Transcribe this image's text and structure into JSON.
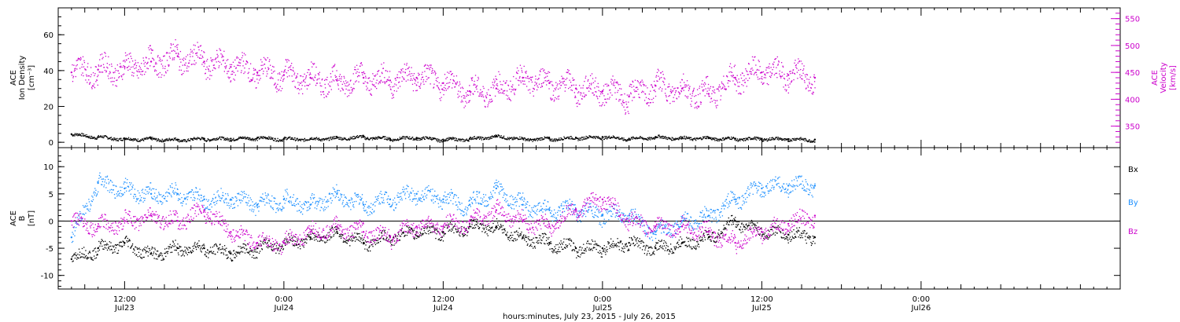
{
  "colors": {
    "ink": "#000000",
    "velocity": "#cc00cc",
    "bx": "#000000",
    "by": "#1e90ff",
    "bz": "#cc00cc"
  },
  "footer": {
    "xlabel": "hours:minutes, July 23, 2015 - July 26, 2015"
  },
  "chart_data": [
    {
      "type": "scatter",
      "panel": "top",
      "ylabel_left": [
        "ACE",
        "Ion Density",
        "[cm⁻³]"
      ],
      "ylabel_right": [
        "ACE",
        "Velocity",
        "[km/s]"
      ],
      "ylim_left": [
        -3,
        75
      ],
      "yticks_left": [
        "0",
        "20",
        "40",
        "60"
      ],
      "ylim_right": [
        310,
        570
      ],
      "yticks_right": [
        "350",
        "400",
        "450",
        "500",
        "550"
      ],
      "series": [
        {
          "axis": "left",
          "color": "#000000",
          "x": [
            8,
            10,
            12,
            14,
            16,
            18,
            20,
            22,
            24,
            26,
            28,
            30,
            32,
            34,
            36,
            38,
            40,
            42,
            44,
            46,
            48,
            50,
            52,
            54,
            56,
            58,
            60,
            62,
            64
          ],
          "y": [
            4.5,
            3,
            2,
            2,
            1.5,
            2,
            2,
            2.5,
            2,
            2,
            2.5,
            3,
            2,
            2.5,
            1.5,
            2,
            3.5,
            2,
            2,
            2.5,
            3,
            2,
            3,
            2.5,
            2.5,
            2,
            2,
            1.8,
            1.5
          ]
        },
        {
          "axis": "right",
          "color": "#cc00cc",
          "x": [
            8,
            10,
            12,
            14,
            16,
            18,
            20,
            22,
            24,
            26,
            28,
            30,
            32,
            34,
            36,
            38,
            40,
            42,
            44,
            46,
            48,
            50,
            52,
            54,
            56,
            58,
            60,
            62,
            64
          ],
          "y": [
            450,
            455,
            460,
            470,
            480,
            470,
            460,
            450,
            445,
            440,
            435,
            440,
            435,
            440,
            430,
            415,
            420,
            440,
            430,
            420,
            415,
            405,
            425,
            420,
            410,
            440,
            450,
            445,
            440
          ]
        }
      ]
    },
    {
      "type": "scatter",
      "panel": "bottom",
      "ylabel_left": [
        "ACE",
        "B",
        "[nT]"
      ],
      "ylim": [
        -12.5,
        13.5
      ],
      "yticks": [
        "-10",
        "-5",
        "0",
        "5",
        "10"
      ],
      "legend": [
        "Bx",
        "By",
        "Bz"
      ],
      "series": [
        {
          "name": "Bx",
          "color": "#000000",
          "x": [
            8,
            10,
            12,
            14,
            16,
            18,
            20,
            22,
            24,
            26,
            28,
            30,
            32,
            34,
            36,
            38,
            40,
            42,
            44,
            46,
            48,
            50,
            52,
            54,
            56,
            58,
            60,
            62,
            64
          ],
          "y": [
            -7,
            -5,
            -4,
            -6,
            -5,
            -5,
            -6,
            -5,
            -4,
            -3,
            -2,
            -4,
            -3,
            -2,
            -2,
            -1,
            -1,
            -3,
            -4,
            -5,
            -5,
            -4,
            -5,
            -4,
            -3,
            0,
            -2,
            -2.5,
            -3
          ]
        },
        {
          "name": "By",
          "color": "#1e90ff",
          "x": [
            8,
            10,
            12,
            14,
            16,
            18,
            20,
            22,
            24,
            26,
            28,
            30,
            32,
            34,
            36,
            38,
            40,
            42,
            44,
            46,
            48,
            50,
            52,
            54,
            56,
            58,
            60,
            62,
            64
          ],
          "y": [
            -3,
            7,
            6,
            5,
            5,
            4,
            4,
            3,
            4,
            3,
            5,
            3,
            4,
            5,
            4,
            3,
            6,
            3,
            2,
            2,
            1,
            1,
            -2,
            0,
            1,
            4,
            6,
            6.5,
            6.5
          ]
        },
        {
          "name": "Bz",
          "color": "#cc00cc",
          "x": [
            8,
            10,
            12,
            14,
            16,
            18,
            20,
            22,
            24,
            26,
            28,
            30,
            32,
            34,
            36,
            38,
            40,
            42,
            44,
            46,
            48,
            50,
            52,
            54,
            56,
            58,
            60,
            62,
            64
          ],
          "y": [
            0,
            -1,
            0,
            1,
            0,
            2,
            -2,
            -4,
            -4,
            -2,
            -1,
            -2,
            -3,
            -1,
            -1,
            0,
            2,
            0,
            -1,
            2,
            4,
            0,
            -1,
            -1,
            -2,
            -4,
            -2,
            -0.5,
            1
          ]
        }
      ]
    }
  ],
  "x_axis": {
    "xlim": [
      7,
      87
    ],
    "ticks": [
      {
        "x": 12,
        "time": "12:00",
        "date": "Jul23"
      },
      {
        "x": 24,
        "time": "0:00",
        "date": "Jul24"
      },
      {
        "x": 36,
        "time": "12:00",
        "date": "Jul24"
      },
      {
        "x": 48,
        "time": "0:00",
        "date": "Jul25"
      },
      {
        "x": 60,
        "time": "12:00",
        "date": "Jul25"
      },
      {
        "x": 72,
        "time": "0:00",
        "date": "Jul26"
      }
    ]
  }
}
